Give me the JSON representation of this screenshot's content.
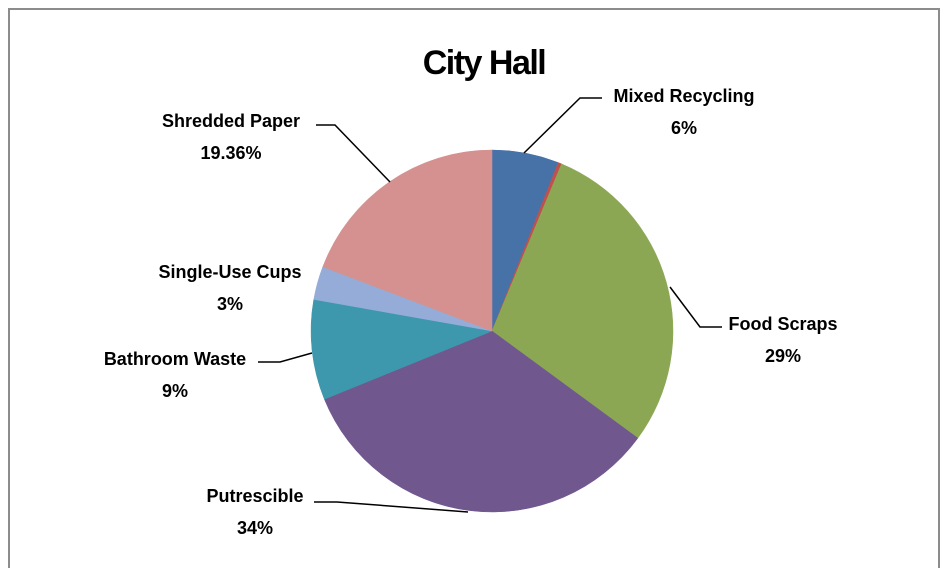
{
  "chart_data": {
    "type": "pie",
    "title": "City Hall",
    "start_angle_deg": 0,
    "direction": "clockwise",
    "slices": [
      {
        "name": "Mixed Recycling",
        "value": 6,
        "value_label": "6%",
        "color": "#4672a8"
      },
      {
        "name": "",
        "value": 0.32,
        "value_label": "",
        "color": "#c0504d"
      },
      {
        "name": "Food Scraps",
        "value": 29,
        "value_label": "29%",
        "color": "#8ba753"
      },
      {
        "name": "Putrescible",
        "value": 34,
        "value_label": "34%",
        "color": "#70588f"
      },
      {
        "name": "Bathroom Waste",
        "value": 9,
        "value_label": "9%",
        "color": "#3d98ae"
      },
      {
        "name": "Single-Use Cups",
        "value": 3,
        "value_label": "3%",
        "color": "#94acd7"
      },
      {
        "name": "Shredded Paper",
        "value": 19.36,
        "value_label": "19.36%",
        "color": "#d4918f"
      }
    ],
    "legend": "none",
    "data_labels": "outside-with-leader-lines"
  }
}
